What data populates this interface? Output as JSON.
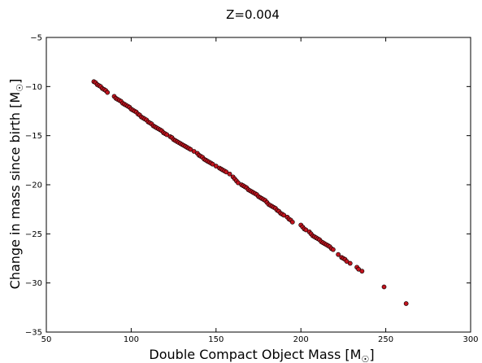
{
  "chart_data": {
    "type": "scatter",
    "title": "Z=0.004",
    "xlabel": "Double Compact Object Mass [M",
    "ylabel": "Change in mass since birth [M",
    "unit_symbol": "☉",
    "label_bracket_close": "]",
    "xlim": [
      50,
      300
    ],
    "ylim": [
      -35,
      -5
    ],
    "xticks": [
      50,
      100,
      150,
      200,
      250,
      300
    ],
    "yticks": [
      -5,
      -10,
      -15,
      -20,
      -25,
      -30,
      -35
    ],
    "xtick_labels": [
      "50",
      "100",
      "150",
      "200",
      "250",
      "300"
    ],
    "ytick_labels": [
      "−5",
      "−10",
      "−15",
      "−20",
      "−25",
      "−30",
      "−35"
    ],
    "marker_color": "#c0141e",
    "grid": false,
    "series": [
      {
        "points": [
          [
            78,
            -9.5
          ],
          [
            79,
            -9.6
          ],
          [
            80,
            -9.8
          ],
          [
            81,
            -9.9
          ],
          [
            82,
            -10.0
          ],
          [
            83,
            -10.2
          ],
          [
            84,
            -10.3
          ],
          [
            85,
            -10.4
          ],
          [
            86,
            -10.6
          ],
          [
            90,
            -11.0
          ],
          [
            91,
            -11.2
          ],
          [
            92,
            -11.3
          ],
          [
            93,
            -11.4
          ],
          [
            94,
            -11.5
          ],
          [
            95,
            -11.7
          ],
          [
            96,
            -11.8
          ],
          [
            97,
            -11.9
          ],
          [
            98,
            -12.0
          ],
          [
            99,
            -12.1
          ],
          [
            100,
            -12.3
          ],
          [
            101,
            -12.4
          ],
          [
            102,
            -12.5
          ],
          [
            103,
            -12.6
          ],
          [
            104,
            -12.8
          ],
          [
            105,
            -12.9
          ],
          [
            106,
            -13.1
          ],
          [
            107,
            -13.2
          ],
          [
            108,
            -13.3
          ],
          [
            109,
            -13.4
          ],
          [
            110,
            -13.6
          ],
          [
            111,
            -13.7
          ],
          [
            112,
            -13.8
          ],
          [
            113,
            -14.0
          ],
          [
            114,
            -14.1
          ],
          [
            115,
            -14.2
          ],
          [
            116,
            -14.3
          ],
          [
            117,
            -14.4
          ],
          [
            118,
            -14.5
          ],
          [
            119,
            -14.7
          ],
          [
            120,
            -14.8
          ],
          [
            121,
            -14.9
          ],
          [
            123,
            -15.1
          ],
          [
            124,
            -15.2
          ],
          [
            125,
            -15.4
          ],
          [
            126,
            -15.5
          ],
          [
            127,
            -15.6
          ],
          [
            128,
            -15.7
          ],
          [
            129,
            -15.8
          ],
          [
            130,
            -15.9
          ],
          [
            131,
            -16.0
          ],
          [
            132,
            -16.1
          ],
          [
            133,
            -16.2
          ],
          [
            134,
            -16.3
          ],
          [
            135,
            -16.4
          ],
          [
            137,
            -16.6
          ],
          [
            139,
            -16.8
          ],
          [
            140,
            -17.0
          ],
          [
            141,
            -17.1
          ],
          [
            142,
            -17.2
          ],
          [
            143,
            -17.4
          ],
          [
            144,
            -17.5
          ],
          [
            145,
            -17.6
          ],
          [
            146,
            -17.7
          ],
          [
            147,
            -17.8
          ],
          [
            148,
            -17.9
          ],
          [
            150,
            -18.1
          ],
          [
            152,
            -18.3
          ],
          [
            153,
            -18.4
          ],
          [
            154,
            -18.5
          ],
          [
            155,
            -18.6
          ],
          [
            156,
            -18.7
          ],
          [
            158,
            -18.9
          ],
          [
            160,
            -19.2
          ],
          [
            161,
            -19.4
          ],
          [
            162,
            -19.6
          ],
          [
            163,
            -19.8
          ],
          [
            165,
            -20.0
          ],
          [
            166,
            -20.1
          ],
          [
            167,
            -20.2
          ],
          [
            168,
            -20.3
          ],
          [
            169,
            -20.5
          ],
          [
            170,
            -20.6
          ],
          [
            171,
            -20.7
          ],
          [
            172,
            -20.8
          ],
          [
            173,
            -20.9
          ],
          [
            174,
            -21.0
          ],
          [
            175,
            -21.2
          ],
          [
            176,
            -21.3
          ],
          [
            177,
            -21.4
          ],
          [
            178,
            -21.5
          ],
          [
            179,
            -21.6
          ],
          [
            180,
            -21.8
          ],
          [
            181,
            -22.0
          ],
          [
            182,
            -22.1
          ],
          [
            183,
            -22.2
          ],
          [
            184,
            -22.3
          ],
          [
            185,
            -22.4
          ],
          [
            186,
            -22.6
          ],
          [
            187,
            -22.7
          ],
          [
            188,
            -22.9
          ],
          [
            189,
            -23.0
          ],
          [
            190,
            -23.1
          ],
          [
            192,
            -23.3
          ],
          [
            193,
            -23.5
          ],
          [
            194,
            -23.6
          ],
          [
            195,
            -23.8
          ],
          [
            200,
            -24.1
          ],
          [
            201,
            -24.3
          ],
          [
            202,
            -24.5
          ],
          [
            203,
            -24.6
          ],
          [
            205,
            -24.8
          ],
          [
            206,
            -25.0
          ],
          [
            207,
            -25.2
          ],
          [
            208,
            -25.3
          ],
          [
            209,
            -25.4
          ],
          [
            210,
            -25.5
          ],
          [
            211,
            -25.6
          ],
          [
            212,
            -25.8
          ],
          [
            213,
            -25.9
          ],
          [
            214,
            -26.0
          ],
          [
            215,
            -26.1
          ],
          [
            216,
            -26.2
          ],
          [
            217,
            -26.3
          ],
          [
            218,
            -26.5
          ],
          [
            219,
            -26.6
          ],
          [
            222,
            -27.1
          ],
          [
            224,
            -27.4
          ],
          [
            225,
            -27.5
          ],
          [
            226,
            -27.6
          ],
          [
            227,
            -27.8
          ],
          [
            229,
            -28.0
          ],
          [
            233,
            -28.4
          ],
          [
            234,
            -28.6
          ],
          [
            236,
            -28.8
          ],
          [
            249,
            -30.4
          ],
          [
            262,
            -32.1
          ]
        ]
      }
    ]
  }
}
